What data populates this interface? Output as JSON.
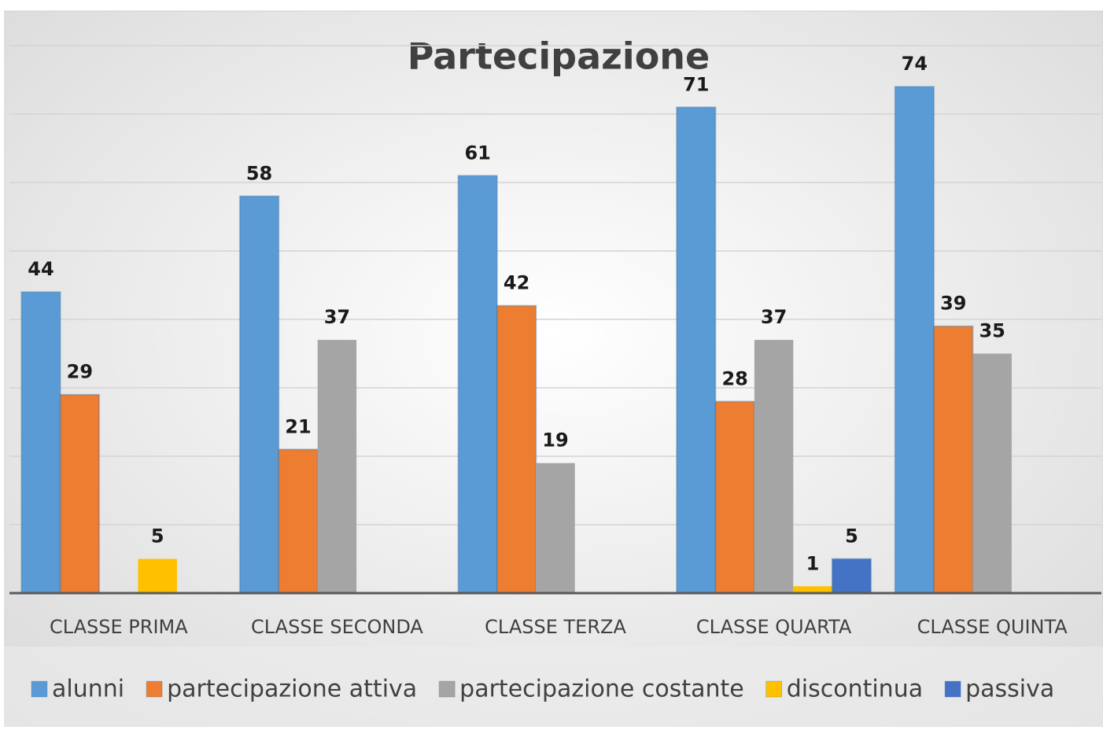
{
  "chart_data": {
    "type": "bar",
    "title": "Partecipazione",
    "categories": [
      "CLASSE PRIMA",
      "CLASSE SECONDA",
      "CLASSE TERZA",
      "CLASSE QUARTA",
      "CLASSE QUINTA"
    ],
    "series": [
      {
        "name": "alunni",
        "color": "#5b9bd5",
        "values": [
          44,
          58,
          61,
          71,
          74
        ]
      },
      {
        "name": "partecipazione attiva",
        "color": "#ed7d31",
        "values": [
          29,
          21,
          42,
          28,
          39
        ]
      },
      {
        "name": "partecipazione costante",
        "color": "#a5a5a5",
        "values": [
          null,
          37,
          19,
          37,
          35
        ]
      },
      {
        "name": "discontinua",
        "color": "#ffc000",
        "values": [
          5,
          null,
          null,
          1,
          null
        ]
      },
      {
        "name": "passiva",
        "color": "#4472c4",
        "values": [
          null,
          null,
          null,
          5,
          null
        ]
      }
    ],
    "ylim": [
      0,
      80
    ],
    "yticks": [
      0,
      10,
      20,
      30,
      40,
      50,
      60,
      70,
      80
    ],
    "grid": true,
    "legend": "bottom"
  }
}
